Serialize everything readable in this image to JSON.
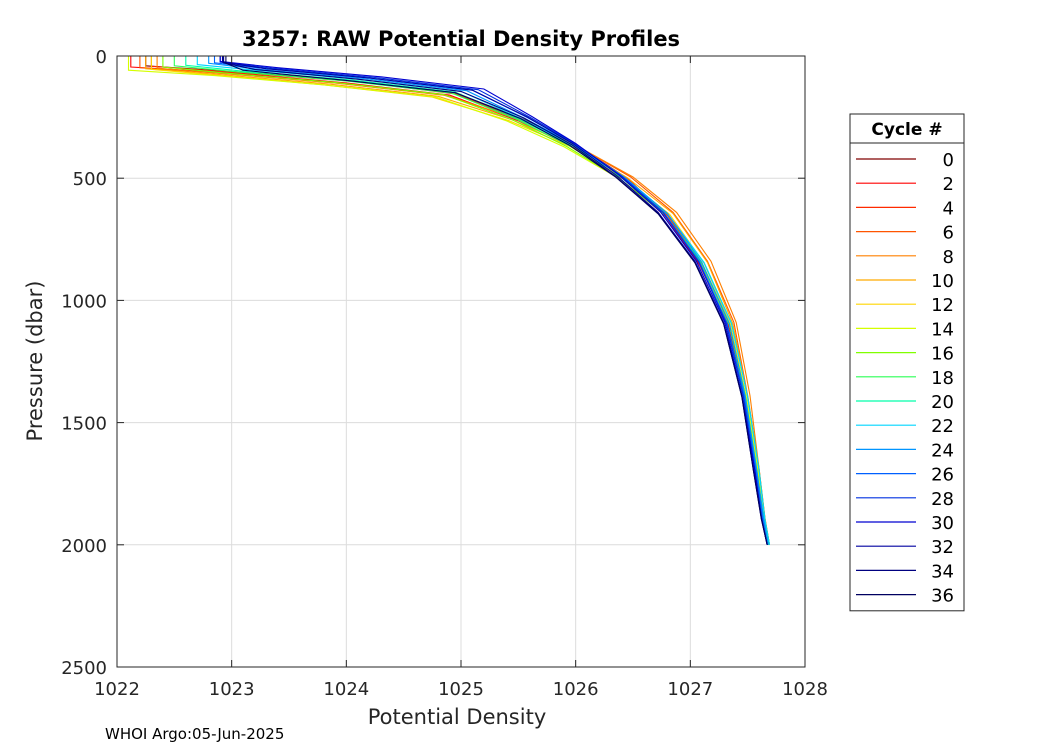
{
  "chart_data": {
    "type": "line",
    "title": "3257: RAW Potential Density Profiles",
    "xlabel": "Potential Density",
    "ylabel": "Pressure (dbar)",
    "xlim": [
      1022,
      1028
    ],
    "ylim": [
      0,
      2500
    ],
    "y_reversed": true,
    "xticks": [
      "1022",
      "1023",
      "1024",
      "1025",
      "1026",
      "1027",
      "1028"
    ],
    "yticks": [
      "0",
      "500",
      "1000",
      "1500",
      "2000",
      "2500"
    ],
    "grid": true,
    "legend": {
      "title": "Cycle #",
      "placement": "outside-right"
    },
    "series": [
      {
        "name": "0",
        "color": "#800000",
        "x": [
          1022.25,
          1022.25,
          1023.05,
          1024.05,
          1024.95,
          1025.55,
          1026.02,
          1026.45,
          1026.78,
          1027.08,
          1027.32,
          1027.47,
          1027.57,
          1027.63,
          1027.67
        ],
        "y": [
          0,
          40,
          65,
          100,
          150,
          260,
          370,
          500,
          650,
          850,
          1100,
          1400,
          1700,
          1900,
          2000
        ]
      },
      {
        "name": "2",
        "color": "#ff0000",
        "x": [
          1022.12,
          1022.12,
          1023.02,
          1024.0,
          1024.9,
          1025.5,
          1025.98,
          1026.42,
          1026.78,
          1027.08,
          1027.33,
          1027.48,
          1027.58,
          1027.64,
          1027.68
        ],
        "y": [
          0,
          45,
          70,
          110,
          160,
          265,
          375,
          505,
          655,
          855,
          1100,
          1400,
          1700,
          1900,
          2000
        ]
      },
      {
        "name": "4",
        "color": "#ff2a00",
        "x": [
          1022.3,
          1022.3,
          1023.05,
          1024.1,
          1024.95,
          1025.53,
          1026.0,
          1026.45,
          1026.8,
          1027.1,
          1027.34,
          1027.48,
          1027.58,
          1027.64,
          1027.68
        ],
        "y": [
          0,
          42,
          68,
          105,
          155,
          262,
          372,
          502,
          652,
          852,
          1100,
          1400,
          1700,
          1900,
          2000
        ]
      },
      {
        "name": "6",
        "color": "#ff5500",
        "x": [
          1022.2,
          1022.2,
          1022.95,
          1023.9,
          1024.85,
          1025.5,
          1026.0,
          1026.48,
          1026.85,
          1027.15,
          1027.38,
          1027.5,
          1027.6,
          1027.65,
          1027.69
        ],
        "y": [
          0,
          48,
          72,
          110,
          160,
          258,
          365,
          495,
          640,
          840,
          1090,
          1390,
          1690,
          1890,
          2000
        ]
      },
      {
        "name": "8",
        "color": "#ff8000",
        "x": [
          1022.35,
          1022.35,
          1023.0,
          1023.95,
          1024.88,
          1025.5,
          1026.0,
          1026.5,
          1026.88,
          1027.18,
          1027.4,
          1027.52,
          1027.6,
          1027.65,
          1027.69
        ],
        "y": [
          0,
          50,
          75,
          112,
          162,
          260,
          365,
          495,
          640,
          840,
          1090,
          1390,
          1690,
          1890,
          2000
        ]
      },
      {
        "name": "10",
        "color": "#ffaa00",
        "x": [
          1022.25,
          1022.25,
          1022.95,
          1023.85,
          1024.8,
          1025.45,
          1025.98,
          1026.45,
          1026.85,
          1027.15,
          1027.37,
          1027.5,
          1027.6,
          1027.65,
          1027.69
        ],
        "y": [
          0,
          52,
          78,
          115,
          165,
          262,
          368,
          498,
          645,
          845,
          1095,
          1395,
          1695,
          1895,
          2000
        ]
      },
      {
        "name": "12",
        "color": "#ffd500",
        "x": [
          1022.3,
          1022.3,
          1022.9,
          1023.8,
          1024.75,
          1025.42,
          1025.95,
          1026.42,
          1026.82,
          1027.12,
          1027.35,
          1027.49,
          1027.59,
          1027.64,
          1027.68
        ],
        "y": [
          0,
          55,
          80,
          118,
          168,
          265,
          370,
          500,
          648,
          848,
          1098,
          1398,
          1698,
          1898,
          2000
        ]
      },
      {
        "name": "14",
        "color": "#d5ff00",
        "x": [
          1022.1,
          1022.1,
          1022.85,
          1023.8,
          1024.78,
          1025.4,
          1025.9,
          1026.38,
          1026.78,
          1027.1,
          1027.34,
          1027.49,
          1027.59,
          1027.64,
          1027.68
        ],
        "y": [
          0,
          58,
          80,
          118,
          168,
          266,
          372,
          502,
          650,
          850,
          1100,
          1400,
          1700,
          1900,
          2000
        ]
      },
      {
        "name": "16",
        "color": "#80ff00",
        "x": [
          1022.4,
          1022.4,
          1022.95,
          1023.9,
          1024.85,
          1025.45,
          1025.92,
          1026.38,
          1026.78,
          1027.1,
          1027.34,
          1027.48,
          1027.58,
          1027.64,
          1027.68
        ],
        "y": [
          0,
          45,
          70,
          108,
          158,
          262,
          370,
          500,
          650,
          850,
          1100,
          1400,
          1700,
          1900,
          2000
        ]
      },
      {
        "name": "18",
        "color": "#2aff55",
        "x": [
          1022.5,
          1022.5,
          1023.05,
          1024.0,
          1024.92,
          1025.48,
          1025.95,
          1026.4,
          1026.78,
          1027.1,
          1027.34,
          1027.48,
          1027.58,
          1027.64,
          1027.68
        ],
        "y": [
          0,
          40,
          65,
          102,
          152,
          258,
          368,
          498,
          648,
          848,
          1098,
          1398,
          1698,
          1898,
          2000
        ]
      },
      {
        "name": "20",
        "color": "#00ffaa",
        "x": [
          1022.6,
          1022.6,
          1023.1,
          1024.05,
          1024.95,
          1025.5,
          1025.97,
          1026.42,
          1026.8,
          1027.12,
          1027.36,
          1027.5,
          1027.6,
          1027.65,
          1027.69
        ],
        "y": [
          0,
          38,
          62,
          98,
          148,
          256,
          366,
          496,
          646,
          846,
          1096,
          1396,
          1696,
          1896,
          2000
        ]
      },
      {
        "name": "22",
        "color": "#00d5ff",
        "x": [
          1022.7,
          1022.7,
          1023.2,
          1024.1,
          1025.0,
          1025.52,
          1025.98,
          1026.42,
          1026.8,
          1027.12,
          1027.36,
          1027.5,
          1027.6,
          1027.65,
          1027.69
        ],
        "y": [
          0,
          35,
          58,
          95,
          145,
          255,
          365,
          495,
          645,
          845,
          1095,
          1395,
          1695,
          1895,
          2000
        ]
      },
      {
        "name": "24",
        "color": "#0095ff",
        "x": [
          1022.8,
          1022.8,
          1023.25,
          1024.15,
          1025.05,
          1025.55,
          1026.0,
          1026.42,
          1026.8,
          1027.1,
          1027.34,
          1027.48,
          1027.58,
          1027.64,
          1027.68
        ],
        "y": [
          0,
          30,
          55,
          92,
          142,
          254,
          364,
          494,
          644,
          844,
          1094,
          1394,
          1694,
          1894,
          2000
        ]
      },
      {
        "name": "26",
        "color": "#0060ff",
        "x": [
          1022.85,
          1022.85,
          1023.3,
          1024.2,
          1025.1,
          1025.58,
          1026.0,
          1026.4,
          1026.77,
          1027.08,
          1027.32,
          1027.47,
          1027.57,
          1027.63,
          1027.67
        ],
        "y": [
          0,
          28,
          52,
          90,
          140,
          252,
          362,
          492,
          642,
          842,
          1092,
          1392,
          1692,
          1892,
          2000
        ]
      },
      {
        "name": "28",
        "color": "#0030e0",
        "x": [
          1022.9,
          1022.9,
          1023.35,
          1024.25,
          1025.15,
          1025.6,
          1026.0,
          1026.4,
          1026.76,
          1027.07,
          1027.31,
          1027.46,
          1027.56,
          1027.62,
          1027.67
        ],
        "y": [
          0,
          25,
          50,
          88,
          138,
          250,
          360,
          490,
          640,
          840,
          1090,
          1390,
          1690,
          1890,
          2000
        ]
      },
      {
        "name": "30",
        "color": "#0000d0",
        "x": [
          1022.9,
          1022.9,
          1023.4,
          1024.3,
          1025.2,
          1025.62,
          1026.0,
          1026.38,
          1026.74,
          1027.05,
          1027.3,
          1027.45,
          1027.56,
          1027.62,
          1027.67
        ],
        "y": [
          0,
          22,
          48,
          85,
          135,
          248,
          358,
          488,
          638,
          838,
          1088,
          1388,
          1688,
          1888,
          2000
        ]
      },
      {
        "name": "32",
        "color": "#0000a0",
        "x": [
          1022.92,
          1022.92,
          1023.3,
          1024.2,
          1025.1,
          1025.58,
          1025.98,
          1026.36,
          1026.72,
          1027.04,
          1027.29,
          1027.45,
          1027.55,
          1027.62,
          1027.67
        ],
        "y": [
          0,
          25,
          52,
          90,
          140,
          250,
          360,
          490,
          640,
          840,
          1090,
          1390,
          1690,
          1890,
          2000
        ]
      },
      {
        "name": "34",
        "color": "#000080",
        "x": [
          1022.93,
          1022.93,
          1023.2,
          1024.1,
          1025.0,
          1025.55,
          1025.97,
          1026.35,
          1026.72,
          1027.04,
          1027.29,
          1027.45,
          1027.55,
          1027.62,
          1027.67
        ],
        "y": [
          0,
          28,
          55,
          95,
          145,
          254,
          364,
          494,
          644,
          844,
          1094,
          1394,
          1694,
          1894,
          2000
        ]
      },
      {
        "name": "36",
        "color": "#000060",
        "x": [
          1022.95,
          1022.95,
          1023.1,
          1024.0,
          1024.95,
          1025.52,
          1025.95,
          1026.35,
          1026.72,
          1027.04,
          1027.29,
          1027.45,
          1027.55,
          1027.62,
          1027.67
        ],
        "y": [
          0,
          30,
          58,
          100,
          150,
          256,
          366,
          496,
          646,
          846,
          1096,
          1396,
          1696,
          1896,
          2000
        ]
      }
    ]
  },
  "footer": "WHOI Argo:05-Jun-2025"
}
